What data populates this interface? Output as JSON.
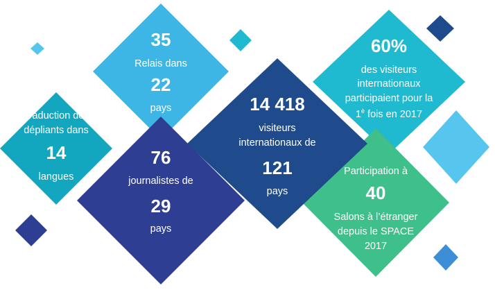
{
  "colors": {
    "lightblue": "#3db6e6",
    "teal": "#13a6bf",
    "darkblue": "#1f4a8b",
    "indigo": "#2e3e93",
    "cyan": "#1fb9d0",
    "green": "#3fbf8a",
    "skyblue": "#57c6ee",
    "accent": "#3c8fd6"
  },
  "stats": {
    "relais": {
      "number": "35",
      "line": "Relais dans",
      "number2": "22",
      "unit": "pays"
    },
    "traduction": {
      "line1": "Traduction des",
      "line2": "dépliants dans",
      "number": "14",
      "unit": "langues"
    },
    "journalistes": {
      "number": "76",
      "line": "journalistes de",
      "number2": "29",
      "unit": "pays"
    },
    "visiteurs": {
      "number": "14 418",
      "line1": "visiteurs",
      "line2": "internationaux de",
      "number2": "121",
      "unit": "pays"
    },
    "pourcentage": {
      "number": "60%",
      "line1": "des visiteurs",
      "line2": "internationaux",
      "line3": "participaient pour la",
      "line4_pre": "1",
      "line4_sup": "è",
      "line4_post": " fois en 2017"
    },
    "salons": {
      "line1": "Participation à",
      "number": "40",
      "line2": "Salons à l’étranger",
      "line3": "depuis le SPACE",
      "line4": "2017"
    }
  }
}
